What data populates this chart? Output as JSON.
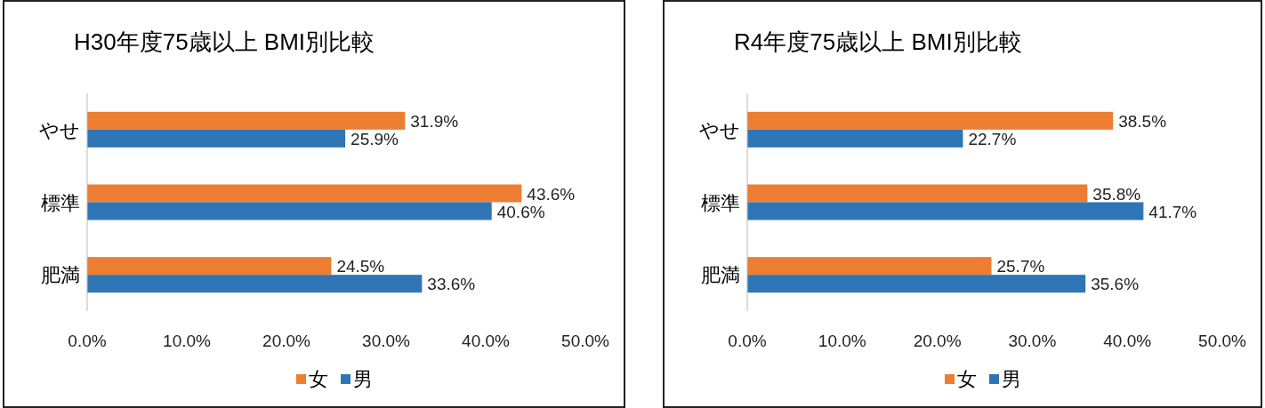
{
  "chart_data": [
    {
      "type": "bar",
      "orientation": "horizontal",
      "title": "H30年度75歳以上  BMI別比較",
      "categories": [
        "やせ",
        "標準",
        "肥満"
      ],
      "series": [
        {
          "name": "女",
          "color": "#ed7d31",
          "values": [
            31.9,
            43.6,
            24.5
          ],
          "value_labels": [
            "31.9%",
            "43.6%",
            "24.5%"
          ]
        },
        {
          "name": "男",
          "color": "#2e75b6",
          "values": [
            25.9,
            40.6,
            33.6
          ],
          "value_labels": [
            "25.9%",
            "40.6%",
            "33.6%"
          ]
        }
      ],
      "xlim": [
        0,
        50
      ],
      "xticks": [
        {
          "value": 0,
          "label": "0.0%"
        },
        {
          "value": 10,
          "label": "10.0%"
        },
        {
          "value": 20,
          "label": "20.0%"
        },
        {
          "value": 30,
          "label": "30.0%"
        },
        {
          "value": 40,
          "label": "40.0%"
        },
        {
          "value": 50,
          "label": "50.0%"
        }
      ],
      "grid": false,
      "legend": "bottom"
    },
    {
      "type": "bar",
      "orientation": "horizontal",
      "title": "R4年度75歳以上  BMI別比較",
      "categories": [
        "やせ",
        "標準",
        "肥満"
      ],
      "series": [
        {
          "name": "女",
          "color": "#ed7d31",
          "values": [
            38.5,
            35.8,
            25.7
          ],
          "value_labels": [
            "38.5%",
            "35.8%",
            "25.7%"
          ]
        },
        {
          "name": "男",
          "color": "#2e75b6",
          "values": [
            22.7,
            41.7,
            35.6
          ],
          "value_labels": [
            "22.7%",
            "41.7%",
            "35.6%"
          ]
        }
      ],
      "xlim": [
        0,
        50
      ],
      "xticks": [
        {
          "value": 0,
          "label": "0.0%"
        },
        {
          "value": 10,
          "label": "10.0%"
        },
        {
          "value": 20,
          "label": "20.0%"
        },
        {
          "value": 30,
          "label": "30.0%"
        },
        {
          "value": 40,
          "label": "40.0%"
        },
        {
          "value": 50,
          "label": "50.0%"
        }
      ],
      "grid": false,
      "legend": "bottom"
    }
  ]
}
